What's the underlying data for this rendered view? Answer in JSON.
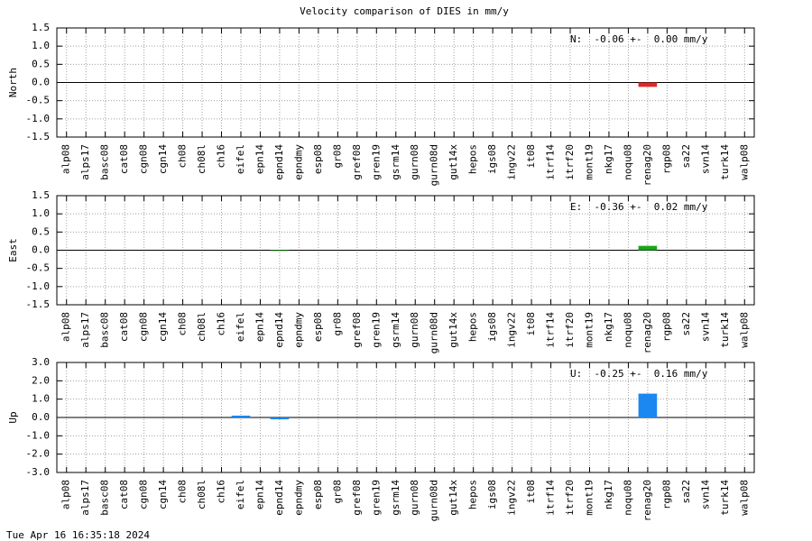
{
  "title": "Velocity comparison of DIES in mm/y",
  "footer": "Tue Apr 16 16:35:18 2024",
  "chart_data": [
    {
      "type": "bar",
      "ylabel": "North",
      "annotation": "N:  -0.06 +-  0.00 mm/y",
      "color": "#e02828",
      "categories": [
        "alp08",
        "alps17",
        "basc08",
        "cat08",
        "cgn08",
        "cgn14",
        "ch08",
        "ch08l",
        "ch16",
        "eifel",
        "epn14",
        "epnd14",
        "epndmy",
        "esp08",
        "gr08",
        "gref08",
        "gren19",
        "gsrm14",
        "gurn08",
        "gurn08d",
        "gut14x",
        "hepos",
        "igs08",
        "ingv22",
        "it08",
        "itrf14",
        "itrf20",
        "mont19",
        "nkg17",
        "noqu08",
        "renag20",
        "rgp08",
        "sa22",
        "svn14",
        "turk14",
        "walp08"
      ],
      "values": [
        0,
        0,
        0,
        0,
        0,
        0,
        0,
        0,
        0,
        0,
        0,
        0,
        0,
        0,
        0,
        0,
        0,
        0,
        0,
        0,
        0,
        0,
        0,
        0,
        0,
        0,
        0,
        0,
        0,
        0,
        -0.12,
        0,
        0,
        0,
        0,
        0
      ],
      "ylim": [
        -1.5,
        1.5
      ],
      "yticks": [
        -1.5,
        {
          "value": -1,
          "label": "-1.0"
        },
        -0.5,
        {
          "value": 0,
          "label": "0.0"
        },
        0.5,
        {
          "value": 1,
          "label": "1.0"
        },
        1.5
      ],
      "grid": true
    },
    {
      "type": "bar",
      "ylabel": "East",
      "annotation": "E:  -0.36 +-  0.02 mm/y",
      "color": "#18a818",
      "categories": [
        "alp08",
        "alps17",
        "basc08",
        "cat08",
        "cgn08",
        "cgn14",
        "ch08",
        "ch08l",
        "ch16",
        "eifel",
        "epn14",
        "epnd14",
        "epndmy",
        "esp08",
        "gr08",
        "gref08",
        "gren19",
        "gsrm14",
        "gurn08",
        "gurn08d",
        "gut14x",
        "hepos",
        "igs08",
        "ingv22",
        "it08",
        "itrf14",
        "itrf20",
        "mont19",
        "nkg17",
        "noqu08",
        "renag20",
        "rgp08",
        "sa22",
        "svn14",
        "turk14",
        "walp08"
      ],
      "values": [
        0,
        0,
        0,
        0,
        0,
        0,
        0,
        0,
        0,
        0,
        0,
        -0.02,
        0,
        0,
        0,
        0,
        0,
        0,
        0,
        0,
        0,
        0,
        0,
        0,
        0,
        0,
        0,
        0,
        0,
        0,
        0.12,
        0,
        0,
        0,
        0,
        0
      ],
      "ylim": [
        -1.5,
        1.5
      ],
      "yticks": [
        -1.5,
        {
          "value": -1,
          "label": "-1.0"
        },
        -0.5,
        {
          "value": 0,
          "label": "0.0"
        },
        0.5,
        {
          "value": 1,
          "label": "1.0"
        },
        1.5
      ],
      "grid": true
    },
    {
      "type": "bar",
      "ylabel": "Up",
      "annotation": "U:  -0.25 +-  0.16 mm/y",
      "color": "#1a88f0",
      "categories": [
        "alp08",
        "alps17",
        "basc08",
        "cat08",
        "cgn08",
        "cgn14",
        "ch08",
        "ch08l",
        "ch16",
        "eifel",
        "epn14",
        "epnd14",
        "epndmy",
        "esp08",
        "gr08",
        "gref08",
        "gren19",
        "gsrm14",
        "gurn08",
        "gurn08d",
        "gut14x",
        "hepos",
        "igs08",
        "ingv22",
        "it08",
        "itrf14",
        "itrf20",
        "mont19",
        "nkg17",
        "noqu08",
        "renag20",
        "rgp08",
        "sa22",
        "svn14",
        "turk14",
        "walp08"
      ],
      "values": [
        0,
        0,
        0,
        0,
        0,
        0,
        0,
        0,
        0,
        0.1,
        0,
        -0.1,
        0,
        0,
        0,
        0,
        0,
        0,
        0,
        0,
        0,
        0,
        0,
        0,
        0,
        0,
        0,
        0,
        0,
        0,
        1.3,
        0,
        0,
        0,
        0,
        0
      ],
      "ylim": [
        -3,
        3
      ],
      "yticks": [
        {
          "value": -3,
          "label": "-3.0"
        },
        {
          "value": -2,
          "label": "-2.0"
        },
        {
          "value": -1,
          "label": "-1.0"
        },
        {
          "value": 0,
          "label": "0.0"
        },
        {
          "value": 1,
          "label": "1.0"
        },
        {
          "value": 2,
          "label": "2.0"
        },
        {
          "value": 3,
          "label": "3.0"
        }
      ],
      "grid": true
    }
  ]
}
